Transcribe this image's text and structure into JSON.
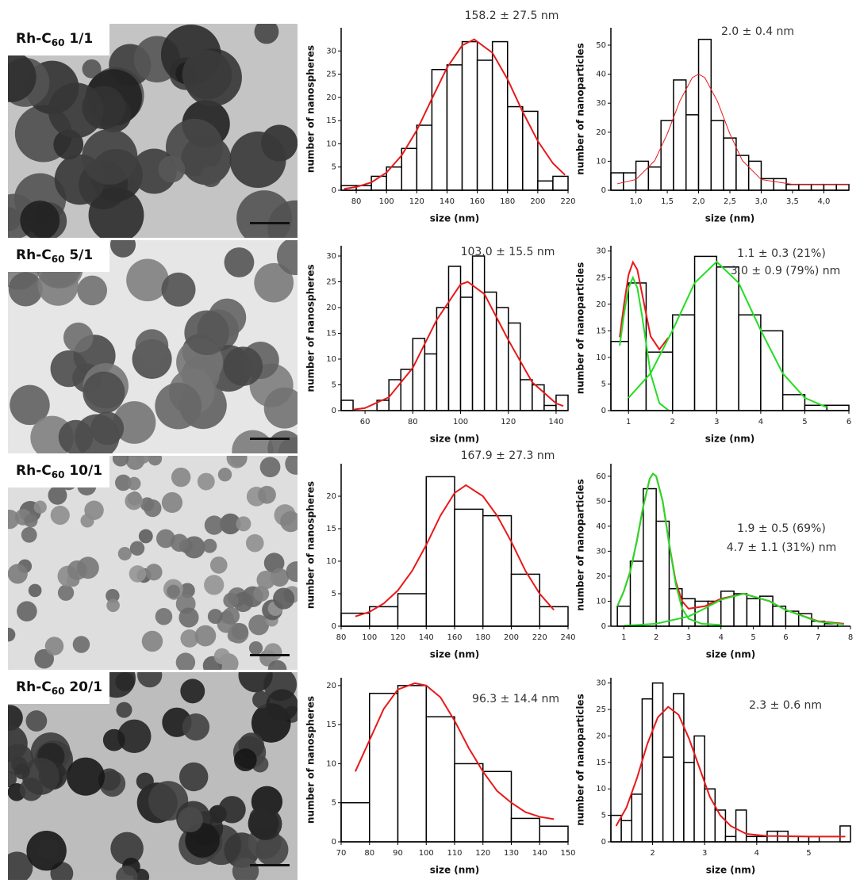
{
  "panels": [
    {
      "label": [
        "Rh-C",
        "60",
        " 1/1"
      ]
    },
    {
      "label": [
        "Rh-C",
        "60",
        " 5/1"
      ]
    },
    {
      "label": [
        "Rh-C",
        "60",
        " 10/1"
      ]
    },
    {
      "label": [
        "Rh-C",
        "60",
        " 20/1"
      ]
    }
  ],
  "chart_data": [
    {
      "type": "histogram",
      "x_label": "size (nm)",
      "y_label": "number of nanospheres",
      "annotations": [
        "158.2 ± 27.5 nm"
      ],
      "bins": [
        70,
        80,
        90,
        100,
        110,
        120,
        130,
        140,
        150,
        160,
        170,
        180,
        190,
        200,
        210,
        220
      ],
      "values": [
        1,
        1,
        3,
        5,
        9,
        14,
        26,
        27,
        32,
        28,
        32,
        18,
        17,
        2,
        3
      ],
      "xlim": [
        70,
        220
      ],
      "xticks": [
        80,
        100,
        120,
        140,
        160,
        180,
        200,
        220
      ],
      "ylim": [
        0,
        35
      ],
      "yticks": [
        0,
        5,
        10,
        15,
        20,
        25,
        30
      ],
      "fits": [
        {
          "color": "#e8191a",
          "x": [
            72,
            80,
            90,
            100,
            110,
            120,
            130,
            140,
            150,
            158,
            170,
            180,
            190,
            200,
            210,
            218
          ],
          "y": [
            0.3,
            0.7,
            1.7,
            3.8,
            7.5,
            12.9,
            19.7,
            26.4,
            31.2,
            32.5,
            29.6,
            23.9,
            16.9,
            10.6,
            5.8,
            3.3
          ]
        }
      ]
    },
    {
      "type": "histogram",
      "x_label": "size (nm)",
      "y_label": "number of nanoparticles",
      "annotations": [
        "2.0 ± 0.4 nm"
      ],
      "bins": [
        0.6,
        0.8,
        1.0,
        1.2,
        1.4,
        1.6,
        1.8,
        2.0,
        2.2,
        2.4,
        2.6,
        2.8,
        3.0,
        3.2,
        3.4,
        3.6,
        3.8,
        4.0,
        4.2,
        4.4
      ],
      "values": [
        6,
        6,
        10,
        8,
        24,
        38,
        26,
        52,
        24,
        18,
        12,
        10,
        4,
        4,
        2,
        2,
        2,
        2,
        2
      ],
      "xlim": [
        0.6,
        4.4
      ],
      "xticks": [
        {
          "value": 1.0,
          "label": "1,0"
        },
        {
          "value": 1.5,
          "label": "1,5"
        },
        {
          "value": 2.0,
          "label": "2,0"
        },
        {
          "value": 2.5,
          "label": "2,5"
        },
        {
          "value": 3.0,
          "label": "3,0"
        },
        {
          "value": 3.5,
          "label": "3,5"
        },
        {
          "value": 4.0,
          "label": "4,0"
        }
      ],
      "ylim": [
        0,
        56
      ],
      "yticks": [
        0,
        10,
        20,
        30,
        40,
        50
      ],
      "fits": [
        {
          "color": "#e8191a",
          "x": [
            0.7,
            1.0,
            1.3,
            1.5,
            1.7,
            1.9,
            2.0,
            2.1,
            2.3,
            2.5,
            2.7,
            3.0,
            3.5,
            4.0,
            4.4
          ],
          "y": [
            2.2,
            3.7,
            10.2,
            19.4,
            30.7,
            38.8,
            40,
            38.8,
            30.7,
            19.4,
            10.2,
            3.7,
            2.0,
            2.0,
            2.0
          ]
        }
      ]
    },
    {
      "type": "histogram",
      "x_label": "size (nm)",
      "y_label": "number of nanospheres",
      "annotations": [
        "103.0 ± 15.5 nm"
      ],
      "bins": [
        50,
        55,
        60,
        65,
        70,
        75,
        80,
        85,
        90,
        95,
        100,
        105,
        110,
        115,
        120,
        125,
        130,
        135,
        140,
        145
      ],
      "values": [
        2,
        0,
        0,
        2,
        6,
        8,
        14,
        11,
        20,
        28,
        22,
        30,
        23,
        20,
        17,
        6,
        5,
        1,
        3
      ],
      "xlim": [
        50,
        145
      ],
      "xticks": [
        60,
        80,
        100,
        120,
        140
      ],
      "ylim": [
        0,
        32
      ],
      "yticks": [
        0,
        5,
        10,
        15,
        20,
        25,
        30
      ],
      "fits": [
        {
          "color": "#e8191a",
          "x": [
            55,
            60,
            70,
            80,
            90,
            100,
            103,
            110,
            120,
            130,
            140,
            143
          ],
          "y": [
            0.2,
            0.5,
            2.6,
            8.3,
            17.6,
            24.5,
            25,
            22.6,
            13.7,
            5.5,
            1.4,
            0.9
          ]
        }
      ]
    },
    {
      "type": "histogram",
      "x_label": "size (nm)",
      "y_label": "number of nanoparticles",
      "annotations": [
        "1.1 ± 0.3 (21%)",
        "3.0 ± 0.9 (79%) nm"
      ],
      "bins": [
        0.6,
        1.0,
        1.4,
        2.0,
        2.5,
        3.0,
        3.5,
        4.0,
        4.5,
        5.0,
        5.5,
        6.0
      ],
      "values": [
        13,
        24,
        11,
        18,
        29,
        27,
        18,
        15,
        3,
        1,
        1
      ],
      "xlim": [
        0.6,
        6
      ],
      "xticks": [
        1,
        2,
        3,
        4,
        5,
        6
      ],
      "ylim": [
        0,
        31
      ],
      "yticks": [
        0,
        5,
        10,
        15,
        20,
        25,
        30
      ],
      "fits": [
        {
          "color": "#e8191a",
          "x": [
            0.8,
            0.9,
            1.0,
            1.1,
            1.2,
            1.3,
            1.5,
            1.7,
            1.9
          ],
          "y": [
            13.8,
            20.1,
            25.5,
            27.9,
            26.5,
            22.3,
            14,
            11.5,
            13.7
          ]
        },
        {
          "color": "#22dd22",
          "x": [
            0.8,
            0.9,
            1.0,
            1.1,
            1.2,
            1.3,
            1.5,
            1.7,
            1.9
          ],
          "y": [
            12.2,
            18.2,
            23.1,
            25,
            23.1,
            18.2,
            7,
            1.4,
            0.1
          ]
        },
        {
          "color": "#22dd22",
          "x": [
            1.0,
            1.5,
            2.0,
            2.5,
            3.0,
            3.5,
            4.0,
            4.5,
            5.0,
            5.5
          ],
          "y": [
            2.4,
            7,
            15.1,
            24,
            28,
            24,
            15.1,
            7,
            2.4,
            0.6
          ]
        }
      ]
    },
    {
      "type": "histogram",
      "x_label": "size (nm)",
      "y_label": "number of nanospheres",
      "annotations": [
        "167.9 ± 27.3 nm"
      ],
      "bins": [
        80,
        100,
        120,
        140,
        160,
        180,
        200,
        220,
        240
      ],
      "values": [
        2,
        3,
        5,
        23,
        18,
        17,
        8,
        3
      ],
      "xlim": [
        80,
        240
      ],
      "xticks": [
        80,
        100,
        120,
        140,
        160,
        180,
        200,
        220,
        240
      ],
      "ylim": [
        0,
        25
      ],
      "yticks": [
        0,
        5,
        10,
        15,
        20
      ],
      "fits": [
        {
          "color": "#e8191a",
          "x": [
            90,
            100,
            110,
            120,
            130,
            140,
            150,
            160,
            168,
            180,
            190,
            200,
            210,
            220,
            230
          ],
          "y": [
            1.5,
            2.2,
            3.5,
            5.5,
            8.5,
            12.5,
            17,
            20.5,
            21.7,
            20,
            17,
            13,
            8.5,
            5,
            2.5
          ]
        }
      ]
    },
    {
      "type": "histogram",
      "x_label": "size (nm)",
      "y_label": "number of nanoparticles",
      "annotations": [
        "1.9 ± 0.5 (69%)",
        "4.7 ± 1.1 (31%) nm"
      ],
      "bins": [
        0.8,
        1.2,
        1.6,
        2.0,
        2.4,
        2.8,
        3.2,
        3.6,
        4.0,
        4.4,
        4.8,
        5.2,
        5.6,
        6.0,
        6.4,
        6.8,
        7.2,
        7.6
      ],
      "values": [
        8,
        26,
        55,
        42,
        15,
        11,
        10,
        10,
        14,
        13,
        11,
        12,
        8,
        6,
        5,
        2,
        1
      ],
      "xlim": [
        0.6,
        8
      ],
      "xticks": [
        1,
        2,
        3,
        4,
        5,
        6,
        7,
        8
      ],
      "ylim": [
        0,
        65
      ],
      "yticks": [
        0,
        10,
        20,
        30,
        40,
        50,
        60
      ],
      "fits": [
        {
          "color": "#e8191a",
          "x": [
            0.8,
            1.0,
            1.2,
            1.4,
            1.6,
            1.8,
            1.9,
            2.0,
            2.2,
            2.4,
            2.6,
            2.8,
            3.0,
            3.5,
            4.0,
            4.7,
            5.5,
            6.0,
            7.0,
            7.8
          ],
          "y": [
            8,
            14,
            22,
            34,
            48,
            59,
            61,
            60,
            50,
            33,
            18,
            10,
            7,
            8,
            11,
            13,
            10,
            6.5,
            2,
            1
          ]
        },
        {
          "color": "#22dd22",
          "x": [
            0.8,
            1.0,
            1.2,
            1.4,
            1.6,
            1.8,
            1.9,
            2.0,
            2.2,
            2.4,
            2.6,
            2.8,
            3.0,
            3.4,
            4.0
          ],
          "y": [
            8,
            14,
            22,
            34,
            48,
            59,
            61,
            60,
            50,
            33,
            17,
            7,
            3,
            1,
            0.5
          ]
        },
        {
          "color": "#22dd22",
          "x": [
            1,
            2,
            3,
            3.5,
            4,
            4.7,
            5.5,
            6,
            7,
            7.8
          ],
          "y": [
            0.2,
            1,
            3.9,
            7.1,
            10.6,
            13,
            10,
            6.5,
            1.8,
            0.7
          ]
        }
      ]
    },
    {
      "type": "histogram",
      "x_label": "size (nm)",
      "y_label": "number of nanospheres",
      "annotations": [
        "96.3 ± 14.4 nm"
      ],
      "bins": [
        70,
        80,
        90,
        100,
        110,
        120,
        130,
        140,
        150
      ],
      "values": [
        5,
        19,
        20,
        16,
        10,
        9,
        3,
        2
      ],
      "xlim": [
        70,
        150
      ],
      "xticks": [
        70,
        80,
        90,
        100,
        110,
        120,
        130,
        140,
        150
      ],
      "ylim": [
        0,
        21
      ],
      "yticks": [
        0,
        5,
        10,
        15,
        20
      ],
      "fits": [
        {
          "color": "#e8191a",
          "x": [
            75,
            80,
            85,
            90,
            96,
            100,
            105,
            110,
            115,
            120,
            125,
            130,
            135,
            140,
            145
          ],
          "y": [
            9,
            13,
            17,
            19.5,
            20.3,
            20,
            18.5,
            15.5,
            12,
            9,
            6.5,
            5,
            3.8,
            3.2,
            2.9
          ]
        }
      ]
    },
    {
      "type": "histogram",
      "x_label": "size (nm)",
      "y_label": "number of nanoparticles",
      "annotations": [
        "2.3 ± 0.6 nm"
      ],
      "bins": [
        1.2,
        1.4,
        1.6,
        1.8,
        2.0,
        2.2,
        2.4,
        2.6,
        2.8,
        3.0,
        3.2,
        3.4,
        3.6,
        3.8,
        4.0,
        4.2,
        4.4,
        4.6,
        4.8,
        5.0,
        5.2,
        5.4,
        5.6,
        5.8
      ],
      "values": [
        5,
        4,
        9,
        27,
        30,
        16,
        28,
        15,
        20,
        10,
        6,
        1,
        6,
        1,
        1,
        2,
        2,
        1,
        1,
        1,
        0,
        0,
        3
      ],
      "xlim": [
        1.2,
        5.8
      ],
      "xticks": [
        2,
        3,
        4,
        5
      ],
      "ylim": [
        0,
        31
      ],
      "yticks": [
        0,
        5,
        10,
        15,
        20,
        25,
        30
      ],
      "fits": [
        {
          "color": "#e8191a",
          "x": [
            1.3,
            1.5,
            1.7,
            1.9,
            2.1,
            2.3,
            2.5,
            2.7,
            2.9,
            3.1,
            3.3,
            3.5,
            3.8,
            4.2,
            5.0,
            5.7
          ],
          "y": [
            3,
            6.5,
            12,
            18.5,
            23.5,
            25.5,
            24,
            19.5,
            14,
            8.5,
            5,
            3,
            1.5,
            1.1,
            1,
            1
          ]
        }
      ]
    }
  ]
}
